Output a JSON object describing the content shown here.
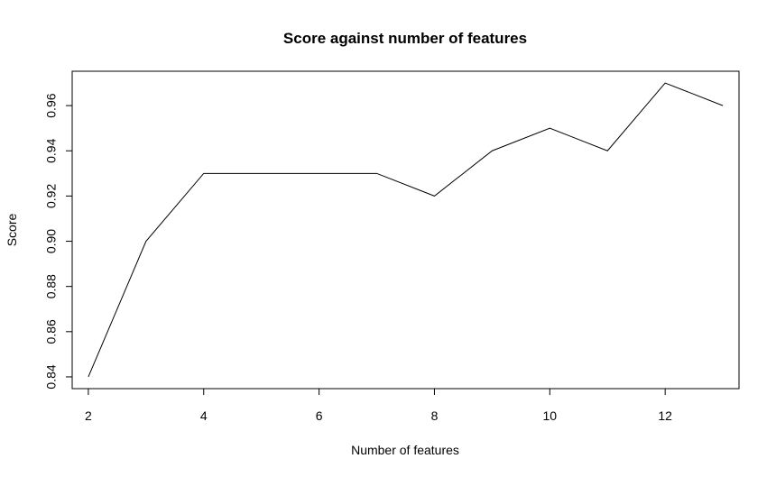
{
  "chart_data": {
    "type": "line",
    "title": "Score against number of features",
    "xlabel": "Number of features",
    "ylabel": "Score",
    "x": [
      2,
      3,
      4,
      5,
      6,
      7,
      8,
      9,
      10,
      11,
      12,
      13
    ],
    "series": [
      {
        "values": [
          0.84,
          0.9,
          0.93,
          0.93,
          0.93,
          0.93,
          0.92,
          0.94,
          0.95,
          0.94,
          0.97,
          0.96
        ]
      }
    ],
    "xlim": [
      1.72,
      13.28
    ],
    "ylim": [
      0.8348,
      0.9752
    ],
    "x_ticks": [
      2,
      4,
      6,
      8,
      10,
      12
    ],
    "x_tick_labels": [
      "2",
      "4",
      "6",
      "8",
      "10",
      "12"
    ],
    "y_ticks": [
      0.84,
      0.86,
      0.88,
      0.9,
      0.92,
      0.94,
      0.96
    ],
    "y_tick_labels": [
      "0.84",
      "0.86",
      "0.88",
      "0.90",
      "0.92",
      "0.94",
      "0.96"
    ],
    "grid": false,
    "line_color": "#000000"
  }
}
